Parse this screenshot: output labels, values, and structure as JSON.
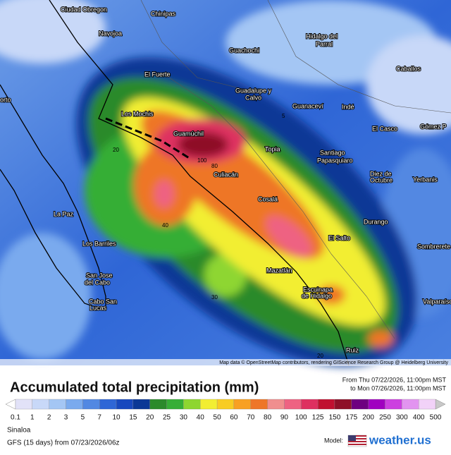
{
  "map": {
    "labels": [
      "Ciudad Obregon",
      "Chinipas",
      "Navojoa",
      "Hidalgo del",
      "Parral",
      "Guachochi",
      "El Fuerte",
      "Caballos",
      "orto",
      "Los Mochis",
      "Guadalupe y",
      "Calvo",
      "Guanaceví",
      "Indé",
      "El Casco",
      "Gómez P",
      "Guamúchil",
      "Topia",
      "Santiago",
      "Papasquiaro",
      "Culiacán",
      "Diez de",
      "Octubre",
      "Yerbanis",
      "Cosalá",
      "La Paz",
      "Durango",
      "El Salto",
      "Los Barriles",
      "Sombrerete",
      "San Jose",
      "del Cabo",
      "Mazatlán",
      "Escuinapa",
      "de Hidalgo",
      "Cabo San",
      "Lucas",
      "Valparaíso",
      "Ruiz"
    ],
    "contours": [
      "20",
      "40",
      "80",
      "100",
      "5",
      "30",
      "20"
    ],
    "attribution": "Map data © OpenStreetMap contributors, rendering GIScience Research Group @ Heidelberg University"
  },
  "header": {
    "title": "Accumulated total precipitation (mm)",
    "from": "From Thu 07/22/2026, 11:00pm MST",
    "to": "to Mon 07/26/2026, 11:00pm MST"
  },
  "legend": {
    "labels": [
      "0.1",
      "1",
      "2",
      "3",
      "5",
      "7",
      "10",
      "15",
      "20",
      "25",
      "30",
      "40",
      "50",
      "60",
      "70",
      "80",
      "90",
      "100",
      "125",
      "150",
      "175",
      "200",
      "250",
      "300",
      "400",
      "500"
    ],
    "colors": [
      "#e2e2f8",
      "#c8d8f8",
      "#a4c6f4",
      "#7aaaee",
      "#5288e2",
      "#2f66d6",
      "#1848be",
      "#0b3896",
      "#2b8a2b",
      "#36ae36",
      "#8ed630",
      "#f2ee32",
      "#f8cc22",
      "#f8a022",
      "#ee7628",
      "#f08e8e",
      "#ee6282",
      "#de3060",
      "#c01030",
      "#8e1028",
      "#6e0080",
      "#a000c0",
      "#cc40e0",
      "#e294f0",
      "#f2d2f8"
    ]
  },
  "footer": {
    "region": "Sinaloa",
    "model_run": "GFS (15 days) from 07/23/2026/06z",
    "model_label": "Model:",
    "brand": "weather.us"
  }
}
